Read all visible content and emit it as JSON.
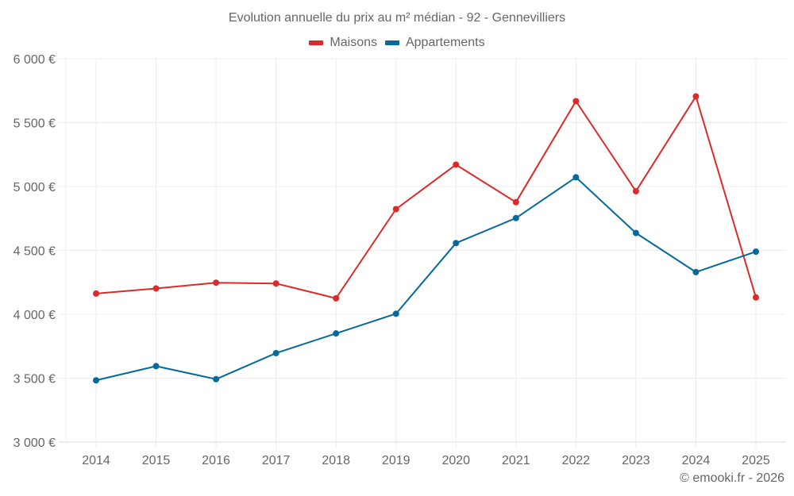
{
  "chart_data": {
    "type": "line",
    "title": "Evolution annuelle du prix au m² médian - 92 - Gennevilliers",
    "xlabel": "",
    "ylabel": "",
    "x": [
      "2014",
      "2015",
      "2016",
      "2017",
      "2018",
      "2019",
      "2020",
      "2021",
      "2022",
      "2023",
      "2024",
      "2025"
    ],
    "ylim": [
      3000,
      6000
    ],
    "yticks": [
      3000,
      3500,
      4000,
      4500,
      5000,
      5500,
      6000
    ],
    "ytick_labels": [
      "3 000 €",
      "3 500 €",
      "4 000 €",
      "4 500 €",
      "5 000 €",
      "5 500 €",
      "6 000 €"
    ],
    "grid": true,
    "legend_position": "top-center",
    "series": [
      {
        "name": "Maisons",
        "color": "#dc2a2a",
        "values": [
          4162,
          4202,
          4247,
          4241,
          4125,
          4823,
          5171,
          4877,
          5668,
          4963,
          5705,
          4132
        ]
      },
      {
        "name": "Appartements",
        "color": "#06699c",
        "values": [
          3483,
          3594,
          3492,
          3696,
          3850,
          4004,
          4557,
          4753,
          5072,
          4636,
          4330,
          4490
        ]
      }
    ]
  },
  "credit": "© emooki.fr - 2026"
}
